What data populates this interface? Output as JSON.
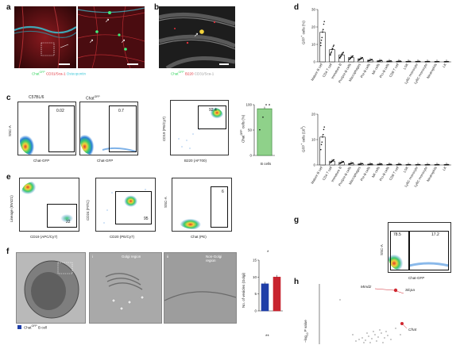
{
  "panel_labels": {
    "a": "a",
    "b": "b",
    "c": "c",
    "d": "d",
    "e": "e",
    "f": "f",
    "g": "g",
    "h": "h"
  },
  "panel_a": {
    "caption_parts": [
      {
        "text": "Chat",
        "color": "#2fd35a"
      },
      {
        "text": "GFP",
        "color": "#2fd35a",
        "sup": true
      },
      {
        "text": " CD31/Sca-1 ",
        "color": "#e0303a"
      },
      {
        "text": "Osteopontin",
        "color": "#3fc8d8"
      }
    ]
  },
  "panel_b": {
    "caption_parts": [
      {
        "text": "Chat",
        "color": "#2fd35a"
      },
      {
        "text": "GFP",
        "color": "#2fd35a",
        "sup": true
      },
      {
        "text": " B220 ",
        "color": "#e0303a"
      },
      {
        "text": "CD31/Sca-1",
        "color": "#cfcfcf"
      }
    ]
  },
  "panel_c": {
    "plots": [
      {
        "title": "C57BL/6",
        "gate": "0.02",
        "ylabel": "SSC-A",
        "xlabel": "Chat-GFP"
      },
      {
        "title": "Chat",
        "title_sup": "GFP",
        "gate": "0.7",
        "xlabel": "Chat-GFP"
      },
      {
        "gate": "92.4",
        "ylabel": "CD19 (PE/Cy7)",
        "xlabel": "B220 (AF700)"
      }
    ],
    "bar": {
      "ylabel": "Chat",
      "ylabel_sup": "GFP",
      "ylabel_rest": " cells (%)",
      "category": "B cells"
    }
  },
  "panel_d": {
    "top_ylabel": "GFP",
    "top_ylabel_rest": " cells (%)",
    "bottom_ylabel": "GFP",
    "bottom_ylabel_rest": " cells (10",
    "categories": [
      "Mature B cell",
      "CD4 T cell",
      "Immature B",
      "Pro/pre-B cells",
      "Macrophages",
      "Pre-B cells",
      "NK cells",
      "Pro-B cells",
      "CD8 T cell",
      "LSK",
      "Ly6C monocyte",
      "Ly6C monocyte",
      "Neutrophils",
      "LK"
    ],
    "category_sups": [
      "",
      "",
      "",
      "",
      "",
      "",
      "",
      "",
      "",
      "",
      "lo",
      "hi",
      "",
      ""
    ]
  },
  "panel_e": {
    "plots": [
      {
        "gate": "22",
        "ylabel": "Lineage (BV421)",
        "xlabel": "CD19 (APC/Cy7)"
      },
      {
        "gate": "95",
        "ylabel": "CD24 (FITC)",
        "xlabel": "CD20 (PE/Cy7)"
      },
      {
        "gate": "6",
        "ylabel": "SSC-A",
        "xlabel": "Chat (PE)"
      }
    ]
  },
  "panel_f": {
    "cell_label": "Chat",
    "cell_label_sup": "GFP",
    "cell_label_rest": " B cell",
    "legend_color": "#1f3ea8",
    "region1": "Golgi region",
    "region2": "Non-Golgi region",
    "roman_1": "i",
    "roman_2": "ii",
    "bar_ylabel": "No. of vesicles (Golgi)",
    "sig_top": "*",
    "sig_bottom": "**"
  },
  "panel_g": {
    "gate_left": "78.5",
    "gate_right": "17.2",
    "ylabel": "SSC-A",
    "xlabel": "Chat-GFP"
  },
  "panel_h": {
    "ylabel": "−log",
    "ylabel_sub": "10",
    "ylabel_rest": " P value",
    "genes": [
      {
        "name": "Mmd2"
      },
      {
        "name": "Slcpa"
      },
      {
        "name": "Chat"
      }
    ]
  },
  "axis_ticks": {
    "log_labels": [
      "−10",
      "0",
      "10",
      "10",
      "10",
      "10"
    ],
    "log_sups": [
      "",
      "",
      "",
      "3",
      "4",
      "5"
    ]
  },
  "chart_data": [
    {
      "type": "bar",
      "title": "",
      "ylabel": "GFP+ cells (%)",
      "categories": [
        "Mature B cell",
        "CD4 T cell",
        "Immature B",
        "Pro/pre-B cells",
        "Macrophages",
        "Pre-B cells",
        "NK cells",
        "Pro-B cells",
        "CD8 T cell",
        "LSK",
        "Ly6Clo monocyte",
        "Ly6Chi monocyte",
        "Neutrophils",
        "LK"
      ],
      "values": [
        17,
        7,
        4,
        2.5,
        1.8,
        1,
        0.6,
        0.4,
        0.3,
        0.2,
        0.2,
        0.15,
        0.1,
        0.1
      ],
      "yticks": [
        "0",
        "10",
        "20",
        "30"
      ],
      "ylim": [
        0,
        30
      ],
      "color": "#ffffff",
      "edge": "#111111"
    },
    {
      "type": "bar",
      "title": "",
      "ylabel": "GFP+ cells (10^3)",
      "categories": [
        "Mature B cell",
        "CD4 T cell",
        "Immature B",
        "Pro/pre-B cells",
        "Macrophages",
        "Pre-B cells",
        "NK cells",
        "Pro-B cells",
        "CD8 T cell",
        "LSK",
        "Ly6Clo monocyte",
        "Ly6Chi monocyte",
        "Neutrophils",
        "LK"
      ],
      "values": [
        11,
        1.5,
        1,
        0.6,
        0.4,
        0.3,
        0.3,
        0.2,
        0.2,
        0.1,
        0.1,
        0.1,
        0.1,
        0.1
      ],
      "yticks": [
        "0",
        "10",
        "20"
      ],
      "ylim": [
        0,
        20
      ],
      "color": "#ffffff",
      "edge": "#111111"
    },
    {
      "type": "bar",
      "title": "",
      "ylabel": "ChatGFP cells (%)",
      "categories": [
        "B cells"
      ],
      "values": [
        92
      ],
      "yticks": [
        "0",
        "50",
        "100"
      ],
      "ylim": [
        0,
        100
      ],
      "color": "#8fd18a",
      "edge": "#2a7a2a"
    },
    {
      "type": "bar",
      "title": "",
      "ylabel": "No. of vesicles (Golgi)",
      "categories": [
        "",
        ""
      ],
      "values": [
        8,
        10
      ],
      "yticks": [
        "0",
        "5",
        "10",
        "15"
      ],
      "ylim": [
        0,
        15
      ],
      "colors": [
        "#1f3ea8",
        "#c8242f"
      ]
    }
  ]
}
